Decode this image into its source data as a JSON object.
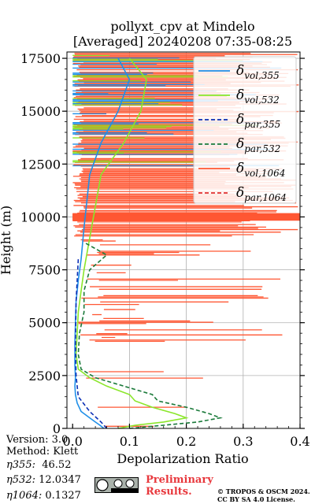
{
  "chart_data": {
    "type": "line",
    "title": [
      "pollyxt_cpv at Mindelo",
      "[Averaged] 20240208 07:35-08:25"
    ],
    "xlabel": "Depolarization Ratio",
    "ylabel": "Height (m)",
    "xlim": [
      -0.01,
      0.4
    ],
    "ylim": [
      0,
      17800
    ],
    "xticks": [
      "0.0",
      "0.1",
      "0.2",
      "0.3",
      "0.4"
    ],
    "xtick_values": [
      0.0,
      0.1,
      0.2,
      0.3,
      0.4
    ],
    "yticks": [
      "0",
      "2500",
      "5000",
      "7500",
      "10000",
      "12500",
      "15000",
      "17500"
    ],
    "ytick_values": [
      0,
      2500,
      5000,
      7500,
      10000,
      12500,
      15000,
      17500
    ],
    "grid": true,
    "legend_position": "top-right",
    "series": [
      {
        "name": "δ_vol,355",
        "label_main": "δ",
        "label_sub": "vol,355",
        "color": "#1f8fe8",
        "style": "solid",
        "points": [
          [
            0.055,
            0
          ],
          [
            0.048,
            150
          ],
          [
            0.04,
            300
          ],
          [
            0.03,
            500
          ],
          [
            0.015,
            800
          ],
          [
            0.008,
            1200
          ],
          [
            0.005,
            1600
          ],
          [
            0.004,
            2000
          ],
          [
            0.005,
            2400
          ],
          [
            0.004,
            3000
          ],
          [
            0.004,
            4000
          ],
          [
            0.005,
            5000
          ],
          [
            0.006,
            6000
          ],
          [
            0.01,
            7000
          ],
          [
            0.015,
            8000
          ],
          [
            0.02,
            9500
          ],
          [
            0.03,
            12000
          ],
          [
            0.05,
            13500
          ],
          [
            0.08,
            15000
          ],
          [
            0.1,
            16500
          ],
          [
            0.08,
            17500
          ]
        ]
      },
      {
        "name": "δ_vol,532",
        "label_main": "δ",
        "label_sub": "vol,532",
        "color": "#8ae62a",
        "style": "solid",
        "points": [
          [
            0.08,
            0
          ],
          [
            0.11,
            150
          ],
          [
            0.16,
            300
          ],
          [
            0.2,
            500
          ],
          [
            0.18,
            700
          ],
          [
            0.14,
            1000
          ],
          [
            0.11,
            1300
          ],
          [
            0.1,
            1600
          ],
          [
            0.06,
            2000
          ],
          [
            0.03,
            2400
          ],
          [
            0.01,
            2800
          ],
          [
            0.006,
            3500
          ],
          [
            0.008,
            4500
          ],
          [
            0.01,
            5500
          ],
          [
            0.015,
            6500
          ],
          [
            0.02,
            7500
          ],
          [
            0.03,
            9000
          ],
          [
            0.05,
            12000
          ],
          [
            0.09,
            13500
          ],
          [
            0.12,
            15000
          ],
          [
            0.13,
            16500
          ],
          [
            0.1,
            17500
          ]
        ]
      },
      {
        "name": "δ_par,355",
        "label_main": "δ",
        "label_sub": "par,355",
        "color": "#0b2fb5",
        "style": "dashed",
        "points": [
          [
            0.06,
            0
          ],
          [
            0.05,
            300
          ],
          [
            0.03,
            800
          ],
          [
            0.01,
            1500
          ],
          [
            0.006,
            2500
          ],
          [
            0.005,
            4000
          ],
          [
            0.006,
            6000
          ],
          [
            0.01,
            8000
          ]
        ]
      },
      {
        "name": "δ_par,532",
        "label_main": "δ",
        "label_sub": "par,532",
        "color": "#1a7a3a",
        "style": "dashed",
        "points": [
          [
            0.1,
            0
          ],
          [
            0.16,
            150
          ],
          [
            0.22,
            300
          ],
          [
            0.26,
            500
          ],
          [
            0.24,
            700
          ],
          [
            0.2,
            1000
          ],
          [
            0.15,
            1300
          ],
          [
            0.14,
            1600
          ],
          [
            0.09,
            2000
          ],
          [
            0.04,
            2400
          ],
          [
            0.015,
            2800
          ],
          [
            0.01,
            3500
          ],
          [
            0.012,
            4500
          ],
          [
            0.02,
            5500
          ],
          [
            0.02,
            6500
          ],
          [
            0.03,
            7500
          ],
          [
            0.06,
            8200
          ],
          [
            0.02,
            8800
          ]
        ]
      },
      {
        "name": "δ_vol,1064",
        "label_main": "δ",
        "label_sub": "vol,1064",
        "color": "#ff5733",
        "style": "solid",
        "points": []
      },
      {
        "name": "δ_par,1064",
        "label_main": "δ",
        "label_sub": "par,1064",
        "color": "#e03030",
        "style": "dashed",
        "points": []
      }
    ]
  },
  "info": {
    "version": "Version: 3.0",
    "method": "Method: Klett",
    "eta355_label": "η355:",
    "eta355_value": "46.52",
    "eta532_label": "η532:",
    "eta532_value": "12.0347",
    "eta1064_label": "η1064:",
    "eta1064_value": "0.1327"
  },
  "footer": {
    "preliminary_line1": "Preliminary",
    "preliminary_line2": "Results.",
    "copyright_line1": "© TROPOS & OSCM 2024.",
    "copyright_line2": "CC BY SA 4.0 License.",
    "cc_badge_color": "#aab2ab"
  }
}
